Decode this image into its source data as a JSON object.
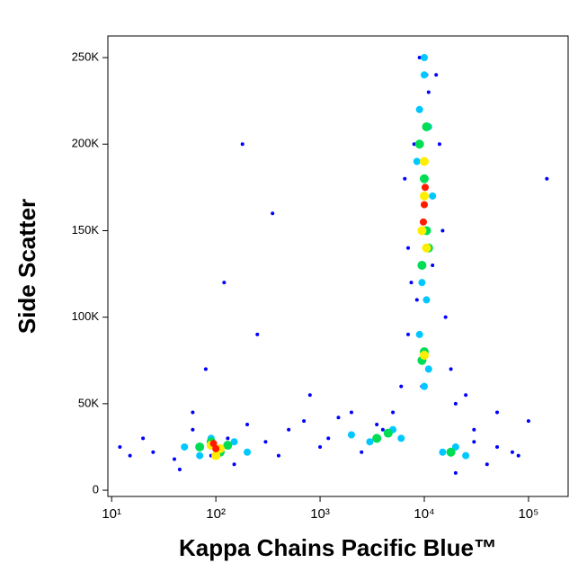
{
  "chart_data": {
    "type": "scatter",
    "x_label": "Kappa Chains Pacific Blue™",
    "y_label": "Side Scatter",
    "xscale": "log",
    "xlim": [
      9.2,
      240000
    ],
    "ylim": [
      -3600,
      262500
    ],
    "xticks": [
      {
        "value": 10,
        "label": "10¹"
      },
      {
        "value": 100,
        "label": "10²"
      },
      {
        "value": 1000,
        "label": "10³"
      },
      {
        "value": 10000,
        "label": "10⁴"
      },
      {
        "value": 100000,
        "label": "10⁵"
      }
    ],
    "yticks": [
      0,
      {
        "value": 50000,
        "label": "50K"
      },
      {
        "value": 100000,
        "label": "100K"
      },
      {
        "value": 150000,
        "label": "150K"
      },
      {
        "value": 200000,
        "label": "200K"
      },
      {
        "value": 250000,
        "label": "250K"
      }
    ],
    "series": [
      {
        "color": "#0000ff",
        "x": [
          12,
          15,
          20,
          25,
          40,
          60,
          150,
          200,
          300,
          400,
          500,
          700,
          1000,
          1500,
          2500,
          3500,
          5000,
          6000,
          7000,
          7500,
          8000,
          13000,
          15000,
          20000,
          30000,
          40000,
          50000,
          70000,
          100000,
          150000,
          9000,
          11000,
          6500,
          14000,
          8500,
          12000,
          7000,
          16000,
          9500,
          10500,
          60,
          80,
          120,
          180,
          250,
          350,
          800,
          1200,
          2000,
          3000,
          4000,
          45,
          90,
          130,
          30000,
          20000,
          50000,
          25000,
          80000,
          18000
        ],
        "values": [
          25000,
          20000,
          30000,
          22000,
          18000,
          35000,
          15000,
          38000,
          28000,
          20000,
          35000,
          40000,
          25000,
          42000,
          22000,
          38000,
          45000,
          60000,
          90000,
          120000,
          200000,
          240000,
          150000,
          50000,
          28000,
          15000,
          45000,
          22000,
          40000,
          180000,
          250000,
          230000,
          180000,
          200000,
          110000,
          130000,
          140000,
          100000,
          60000,
          240000,
          45000,
          70000,
          120000,
          200000,
          90000,
          160000,
          55000,
          30000,
          45000,
          28000,
          35000,
          12000,
          20000,
          30000,
          35000,
          10000,
          25000,
          55000,
          20000,
          70000
        ]
      },
      {
        "color": "#00c8ff",
        "x": [
          50,
          70,
          90,
          150,
          200,
          2000,
          3000,
          5000,
          6000,
          9000,
          11000,
          9500,
          10500,
          8500,
          12000,
          9000,
          11000,
          10000,
          10000,
          10000,
          15000,
          20000,
          25000
        ],
        "values": [
          25000,
          20000,
          30000,
          28000,
          22000,
          32000,
          28000,
          35000,
          30000,
          220000,
          210000,
          120000,
          110000,
          190000,
          170000,
          90000,
          70000,
          240000,
          250000,
          60000,
          22000,
          25000,
          20000
        ]
      },
      {
        "color": "#00dd55",
        "x": [
          70,
          90,
          110,
          130,
          3500,
          4500,
          9000,
          10000,
          11000,
          9500,
          10500,
          10000,
          9500,
          10500,
          18000
        ],
        "values": [
          25000,
          28000,
          22000,
          26000,
          30000,
          33000,
          200000,
          180000,
          140000,
          130000,
          150000,
          80000,
          75000,
          210000,
          22000
        ]
      },
      {
        "color": "#ffee00",
        "x": [
          90,
          110,
          100,
          10000,
          9500,
          10500,
          10000,
          10000
        ],
        "values": [
          26000,
          24000,
          20000,
          170000,
          150000,
          140000,
          190000,
          78000
        ]
      },
      {
        "color": "#ff1a00",
        "x": [
          100,
          95,
          10000,
          9800,
          10200
        ],
        "values": [
          24000,
          27000,
          165000,
          155000,
          175000
        ]
      }
    ]
  }
}
